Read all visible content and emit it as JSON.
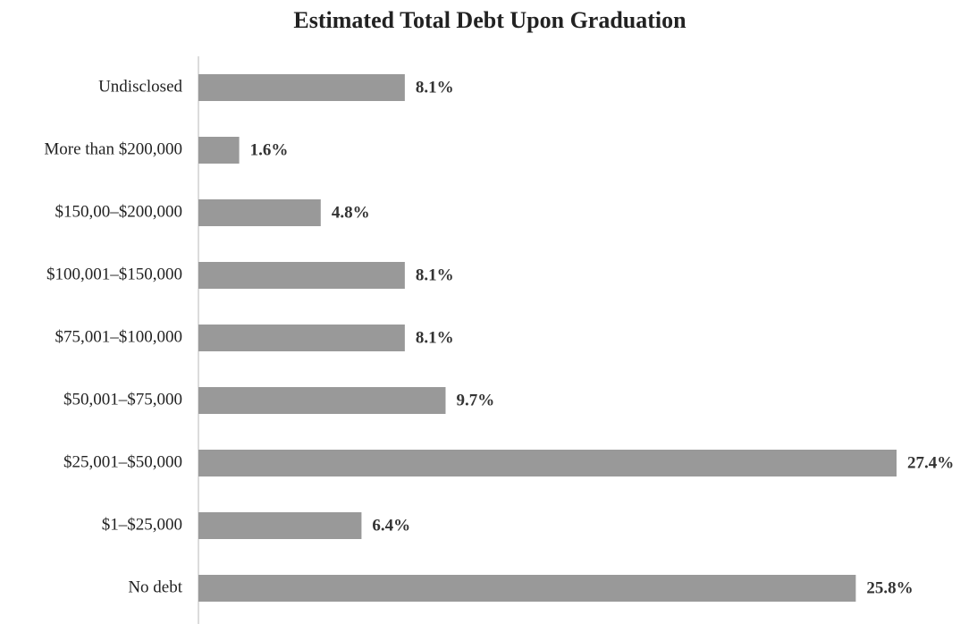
{
  "chart_data": {
    "type": "bar",
    "orientation": "horizontal",
    "title": "Estimated Total Debt Upon Graduation",
    "categories": [
      "Undisclosed",
      "More than $200,000",
      "$150,00–$200,000",
      "$100,001–$150,000",
      "$75,001–$100,000",
      "$50,001–$75,000",
      "$25,001–$50,000",
      "$1–$25,000",
      "No debt"
    ],
    "values": [
      8.1,
      1.6,
      4.8,
      8.1,
      8.1,
      9.7,
      27.4,
      6.4,
      25.8
    ],
    "value_labels": [
      "8.1%",
      "1.6%",
      "4.8%",
      "8.1%",
      "8.1%",
      "9.7%",
      "27.4%",
      "6.4%",
      "25.8%"
    ],
    "color": "#999999"
  }
}
